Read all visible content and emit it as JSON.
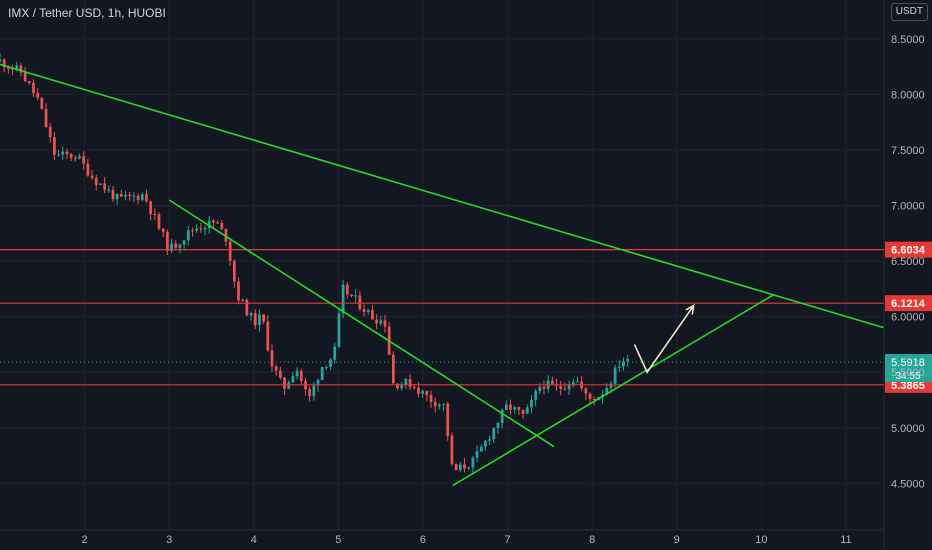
{
  "header": {
    "symbol_title": "IMX / Tether USD, 1h, HUOBI",
    "currency": "USDT"
  },
  "colors": {
    "background": "#131722",
    "grid": "#1f2330",
    "axis_text": "#b2b5be",
    "up": "#26a69a",
    "down": "#ef5350",
    "trendline": "#27d827",
    "level_line": "#e53935",
    "projection_arrow": "#f6e3cc",
    "current_price_badge": "#26a69a"
  },
  "chart_data": {
    "type": "candlestick",
    "x_axis": {
      "range": [
        1.0,
        11.45
      ],
      "ticks": [
        2,
        3,
        4,
        5,
        6,
        7,
        8,
        9,
        10,
        11
      ],
      "tick_labels": [
        "2",
        "3",
        "4",
        "5",
        "6",
        "7",
        "8",
        "9",
        "10",
        "11"
      ]
    },
    "y_axis": {
      "range": [
        4.08,
        8.85
      ],
      "ticks": [
        4.5,
        5.0,
        5.5,
        6.0,
        6.5,
        7.0,
        7.5,
        8.0,
        8.5
      ],
      "tick_labels": [
        "4.5000",
        "5.0000",
        "5.5000",
        "6.0000",
        "6.5000",
        "7.0000",
        "7.5000",
        "8.0000",
        "8.5000"
      ],
      "position": "right"
    },
    "grid": true,
    "price_path": [
      [
        1.0,
        8.3
      ],
      [
        1.25,
        8.2
      ],
      [
        1.45,
        7.95
      ],
      [
        1.65,
        7.45
      ],
      [
        1.9,
        7.45
      ],
      [
        2.1,
        7.25
      ],
      [
        2.4,
        7.05
      ],
      [
        2.7,
        7.1
      ],
      [
        3.0,
        6.6
      ],
      [
        3.3,
        6.8
      ],
      [
        3.55,
        6.85
      ],
      [
        3.68,
        6.7
      ],
      [
        3.8,
        6.2
      ],
      [
        4.0,
        5.95
      ],
      [
        4.1,
        6.0
      ],
      [
        4.2,
        5.6
      ],
      [
        4.35,
        5.35
      ],
      [
        4.5,
        5.55
      ],
      [
        4.65,
        5.25
      ],
      [
        4.8,
        5.55
      ],
      [
        4.95,
        5.65
      ],
      [
        5.05,
        6.25
      ],
      [
        5.2,
        6.15
      ],
      [
        5.4,
        6.0
      ],
      [
        5.55,
        5.95
      ],
      [
        5.65,
        5.4
      ],
      [
        5.85,
        5.4
      ],
      [
        6.1,
        5.25
      ],
      [
        6.25,
        5.2
      ],
      [
        6.35,
        4.6
      ],
      [
        6.6,
        4.7
      ],
      [
        6.8,
        4.95
      ],
      [
        7.0,
        5.2
      ],
      [
        7.2,
        5.1
      ],
      [
        7.4,
        5.4
      ],
      [
        7.6,
        5.35
      ],
      [
        7.8,
        5.45
      ],
      [
        7.95,
        5.25
      ],
      [
        8.1,
        5.3
      ],
      [
        8.2,
        5.4
      ],
      [
        8.35,
        5.62
      ],
      [
        8.42,
        5.59
      ]
    ],
    "horizontal_levels": [
      {
        "price": 6.6034,
        "label": "6.6034"
      },
      {
        "price": 6.1214,
        "label": "6.1214"
      },
      {
        "price": 5.3865,
        "label": "5.3865"
      }
    ],
    "current_price": {
      "price": 5.5918,
      "label": "5.5918",
      "countdown": "34:55"
    },
    "trendlines": [
      {
        "from": [
          1.0,
          8.27
        ],
        "to": [
          11.45,
          5.9
        ]
      },
      {
        "from": [
          3.0,
          7.05
        ],
        "to": [
          7.55,
          4.83
        ]
      },
      {
        "from": [
          6.35,
          4.48
        ],
        "to": [
          10.15,
          6.2
        ]
      }
    ],
    "projection_arrow": [
      [
        8.5,
        5.75
      ],
      [
        8.65,
        5.5
      ],
      [
        9.2,
        6.1
      ]
    ]
  }
}
